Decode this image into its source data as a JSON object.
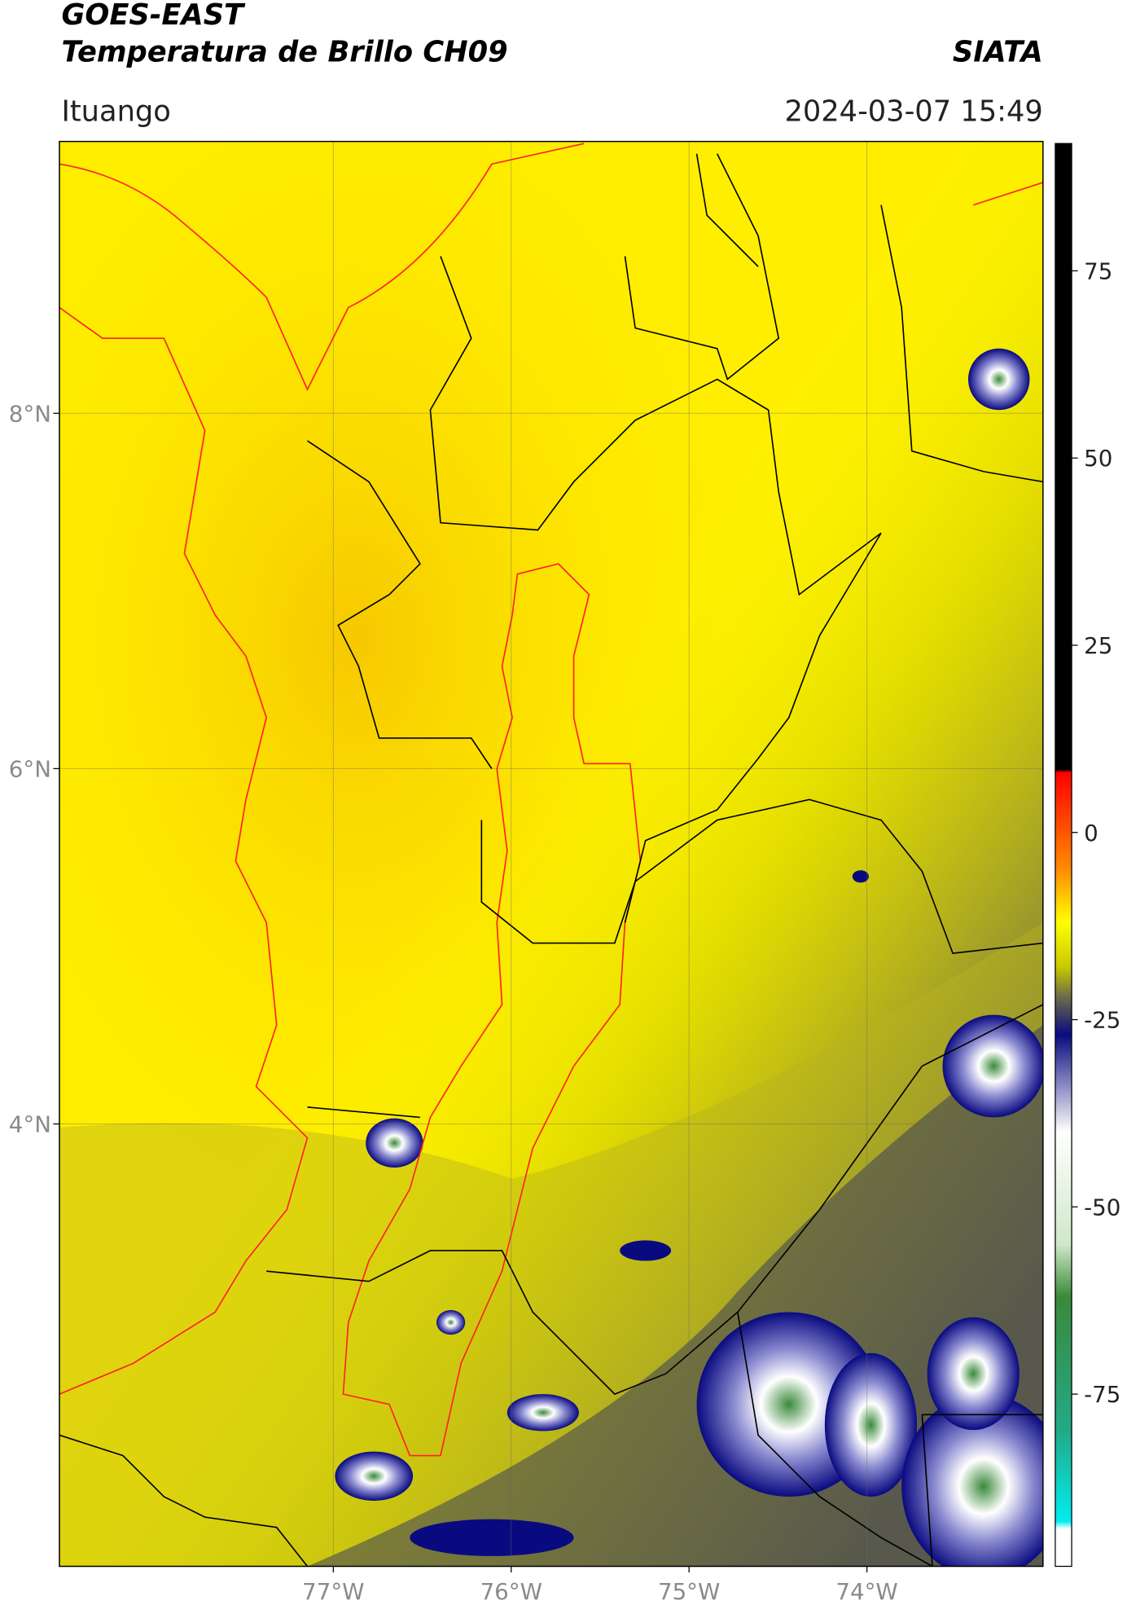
{
  "header": {
    "title_line1": "GOES-EAST",
    "title_line2": "Temperatura de Brillo CH09",
    "source": "SIATA",
    "location": "Ituango",
    "datetime": "2024-03-07 15:49"
  },
  "map": {
    "xlim": [
      -78.54,
      -73.01
    ],
    "ylim": [
      1.51,
      9.53
    ],
    "xticks": [
      {
        "value": -77,
        "label": "77°W"
      },
      {
        "value": -76,
        "label": "76°W"
      },
      {
        "value": -75,
        "label": "75°W"
      },
      {
        "value": -74,
        "label": "74°W"
      }
    ],
    "yticks": [
      {
        "value": 8,
        "label": "8°N"
      },
      {
        "value": 6,
        "label": "6°N"
      },
      {
        "value": 4,
        "label": "4°N"
      }
    ],
    "grid": true
  },
  "colorbar": {
    "lim": [
      -98,
      92
    ],
    "ticks": [
      75,
      50,
      25,
      0,
      -25,
      -50,
      -75
    ],
    "stops": [
      {
        "value": 92,
        "color": "#000000"
      },
      {
        "value": 8.4,
        "color": "#000000"
      },
      {
        "value": 8,
        "color": "#ff0000"
      },
      {
        "value": -5,
        "color": "#ff8c00"
      },
      {
        "value": -12,
        "color": "#ffff00"
      },
      {
        "value": -18,
        "color": "#c8c800"
      },
      {
        "value": -22,
        "color": "#6b6b4a"
      },
      {
        "value": -27,
        "color": "#0a0a80"
      },
      {
        "value": -40,
        "color": "#ffffff"
      },
      {
        "value": -55,
        "color": "#d0e8c8"
      },
      {
        "value": -62,
        "color": "#3a8a3a"
      },
      {
        "value": -80,
        "color": "#22aa88"
      },
      {
        "value": -92,
        "color": "#00eeee"
      },
      {
        "value": -93,
        "color": "#ffffff"
      },
      {
        "value": -98,
        "color": "#ffffff"
      }
    ]
  }
}
